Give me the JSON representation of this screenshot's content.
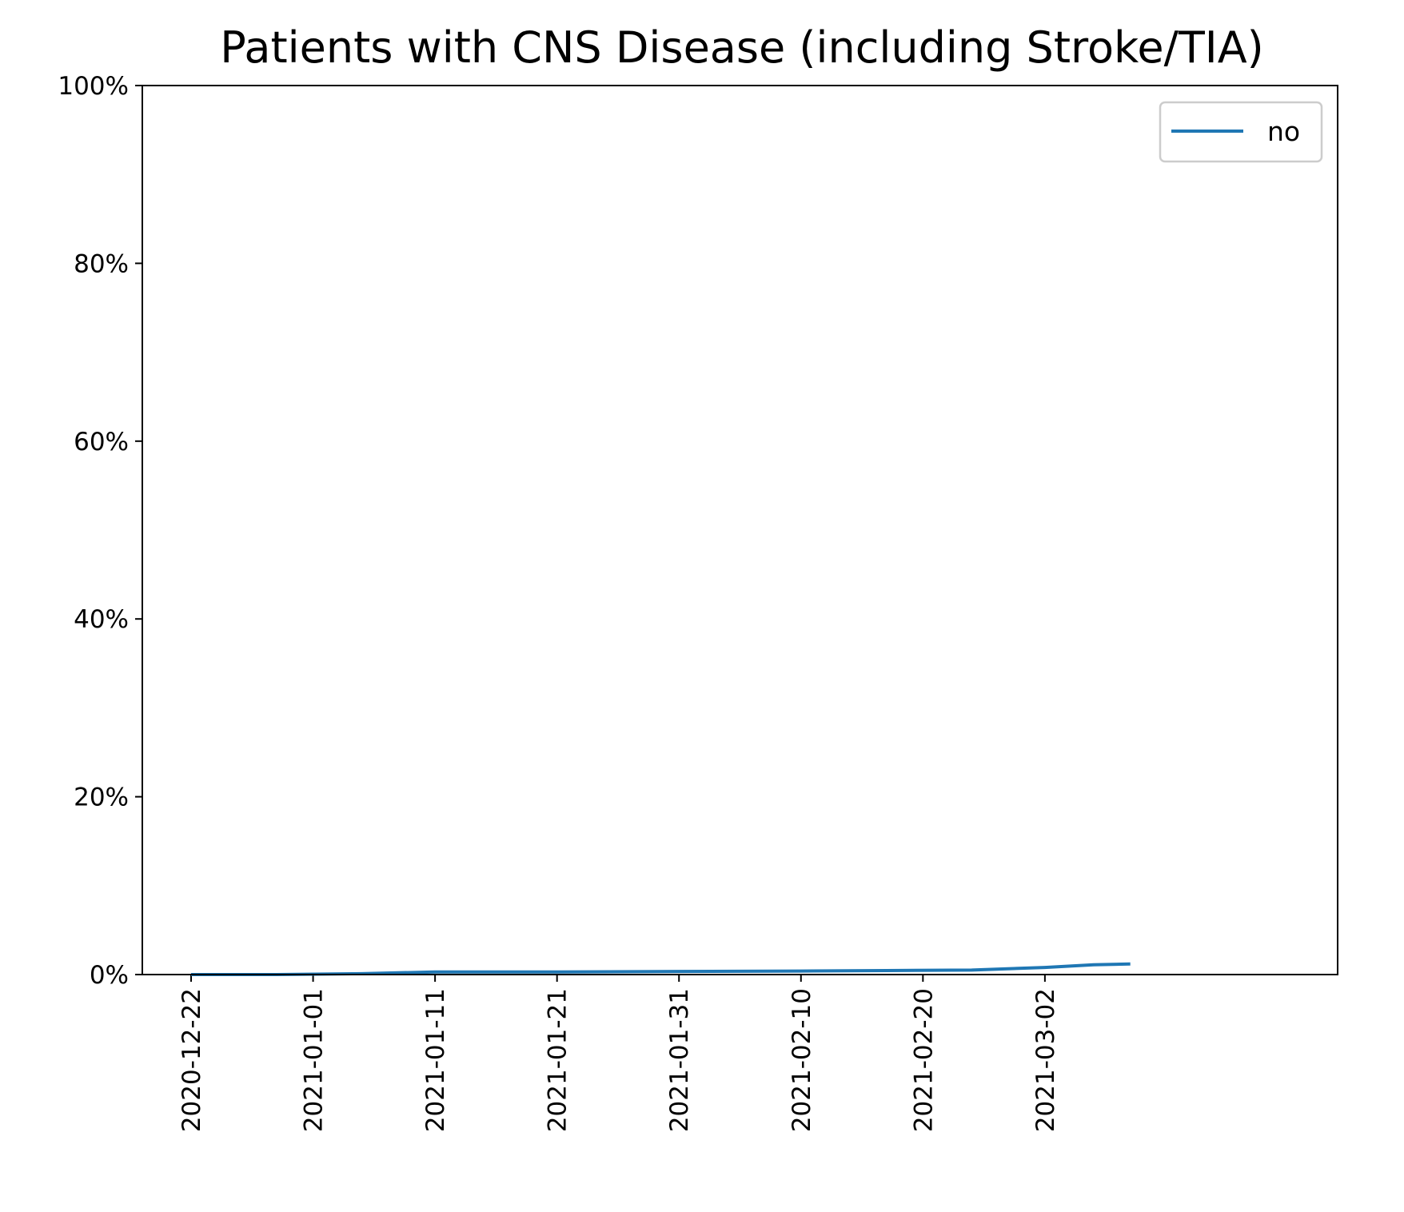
{
  "chart_data": {
    "type": "line",
    "title": "Patients with CNS Disease (including Stroke/TIA)",
    "xlabel": "",
    "ylabel": "",
    "x_ticks": [
      "2020-12-22",
      "2021-01-01",
      "2021-01-11",
      "2021-01-21",
      "2021-01-31",
      "2021-02-10",
      "2021-02-20",
      "2021-03-02"
    ],
    "y_ticks": [
      "0%",
      "20%",
      "40%",
      "60%",
      "80%",
      "100%"
    ],
    "xlim": [
      "2020-12-18",
      "2021-03-26"
    ],
    "ylim": [
      0,
      100
    ],
    "y_unit": "%",
    "grid": false,
    "legend_position": "top-right",
    "series": [
      {
        "name": "no",
        "color": "#1f77b4",
        "x": [
          "2020-12-22",
          "2020-12-29",
          "2021-01-05",
          "2021-01-11",
          "2021-01-21",
          "2021-01-31",
          "2021-02-10",
          "2021-02-17",
          "2021-02-24",
          "2021-03-02",
          "2021-03-06",
          "2021-03-09"
        ],
        "values": [
          0.0,
          0.0,
          0.1,
          0.3,
          0.3,
          0.35,
          0.4,
          0.45,
          0.5,
          0.8,
          1.1,
          1.2
        ]
      }
    ]
  }
}
